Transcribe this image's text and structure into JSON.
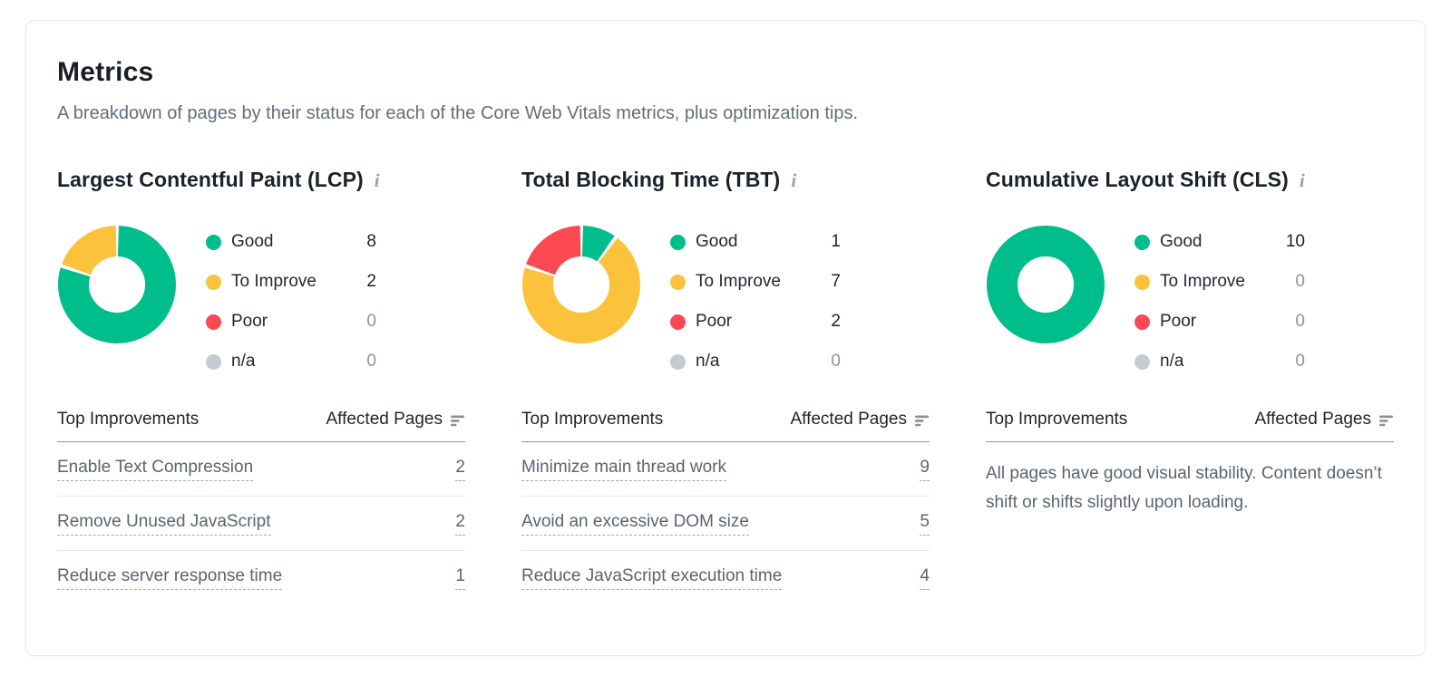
{
  "card": {
    "title": "Metrics",
    "subtitle": "A breakdown of pages by their status for each of the Core Web Vitals metrics, plus optimization tips."
  },
  "colors": {
    "good": "#00be8c",
    "to_improve": "#fdc23c",
    "poor": "#fd4a52",
    "na": "#c5cbd3"
  },
  "info_icon_glyph": "i",
  "table_header": {
    "improvements": "Top Improvements",
    "pages": "Affected Pages"
  },
  "metrics": [
    {
      "title": "Largest Contentful Paint (LCP)",
      "legend": [
        {
          "label": "Good",
          "value": 8,
          "color": "good"
        },
        {
          "label": "To Improve",
          "value": 2,
          "color": "to_improve"
        },
        {
          "label": "Poor",
          "value": 0,
          "color": "poor"
        },
        {
          "label": "n/a",
          "value": 0,
          "color": "na"
        }
      ],
      "improvements": [
        {
          "label": "Enable Text Compression",
          "pages": 2
        },
        {
          "label": "Remove Unused JavaScript",
          "pages": 2
        },
        {
          "label": "Reduce server response time",
          "pages": 1
        }
      ]
    },
    {
      "title": "Total Blocking Time (TBT)",
      "legend": [
        {
          "label": "Good",
          "value": 1,
          "color": "good"
        },
        {
          "label": "To Improve",
          "value": 7,
          "color": "to_improve"
        },
        {
          "label": "Poor",
          "value": 2,
          "color": "poor"
        },
        {
          "label": "n/a",
          "value": 0,
          "color": "na"
        }
      ],
      "improvements": [
        {
          "label": "Minimize main thread work",
          "pages": 9
        },
        {
          "label": "Avoid an excessive DOM size",
          "pages": 5
        },
        {
          "label": "Reduce JavaScript execution time",
          "pages": 4
        }
      ]
    },
    {
      "title": "Cumulative Layout Shift (CLS)",
      "legend": [
        {
          "label": "Good",
          "value": 10,
          "color": "good"
        },
        {
          "label": "To Improve",
          "value": 0,
          "color": "to_improve"
        },
        {
          "label": "Poor",
          "value": 0,
          "color": "poor"
        },
        {
          "label": "n/a",
          "value": 0,
          "color": "na"
        }
      ],
      "improvements": [],
      "empty_message": "All pages have good visual stability. Content doesn’t shift or shifts slightly upon loading."
    }
  ],
  "chart_data": [
    {
      "type": "pie",
      "donut": true,
      "title": "Largest Contentful Paint (LCP)",
      "categories": [
        "Good",
        "To Improve",
        "Poor",
        "n/a"
      ],
      "values": [
        8,
        2,
        0,
        0
      ],
      "colors": [
        "#00be8c",
        "#fdc23c",
        "#fd4a52",
        "#c5cbd3"
      ],
      "legend_position": "right"
    },
    {
      "type": "pie",
      "donut": true,
      "title": "Total Blocking Time (TBT)",
      "categories": [
        "Good",
        "To Improve",
        "Poor",
        "n/a"
      ],
      "values": [
        1,
        7,
        2,
        0
      ],
      "colors": [
        "#00be8c",
        "#fdc23c",
        "#fd4a52",
        "#c5cbd3"
      ],
      "legend_position": "right"
    },
    {
      "type": "pie",
      "donut": true,
      "title": "Cumulative Layout Shift (CLS)",
      "categories": [
        "Good",
        "To Improve",
        "Poor",
        "n/a"
      ],
      "values": [
        10,
        0,
        0,
        0
      ],
      "colors": [
        "#00be8c",
        "#fdc23c",
        "#fd4a52",
        "#c5cbd3"
      ],
      "legend_position": "right"
    }
  ]
}
